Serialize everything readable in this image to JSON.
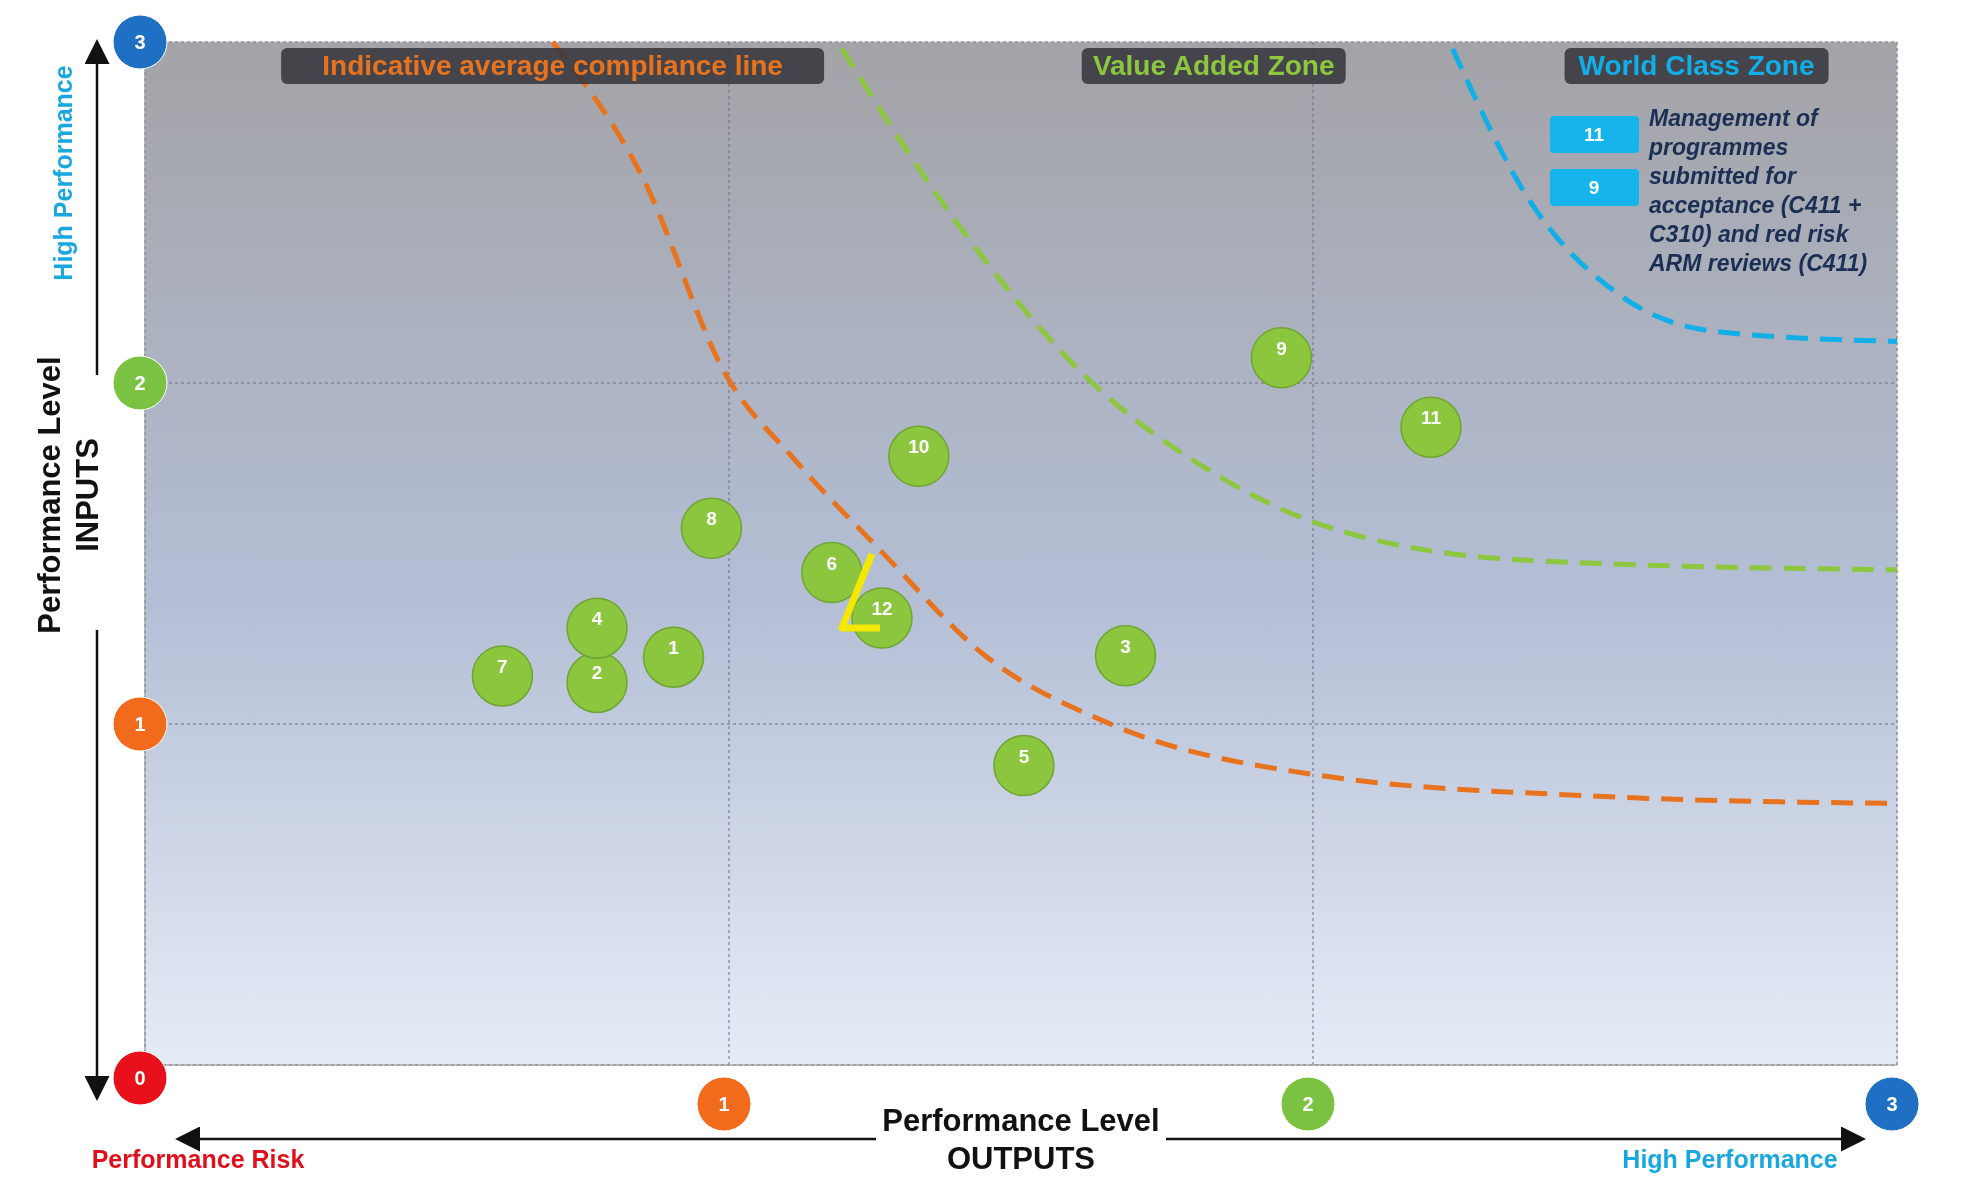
{
  "chart_data": {
    "type": "scatter",
    "xlabel": "Performance Level\nOUTPUTS",
    "ylabel": "Performance Level\nINPUTS",
    "xlim": [
      0,
      3
    ],
    "ylim": [
      0,
      3
    ],
    "xticks": [
      {
        "value": 0,
        "label": null
      },
      1,
      2,
      3
    ],
    "yticks": [
      0,
      1,
      2,
      3
    ],
    "grid": true,
    "marker": "circle",
    "line_style": "dashed",
    "series": [
      {
        "type": "scatter",
        "color": "#8cc63f",
        "x": [
          0.905,
          0.774,
          1.679,
          0.774,
          1.505,
          1.176,
          0.612,
          0.97,
          1.946,
          1.325,
          2.202,
          1.262
        ],
        "values": [
          1.196,
          1.122,
          1.2,
          1.281,
          0.878,
          1.444,
          1.141,
          1.574,
          2.074,
          1.785,
          1.87,
          1.311
        ]
      },
      {
        "type": "line",
        "marker": "none",
        "name": "Indicative average compliance line",
        "color": "#e8731e",
        "x": [
          0.698,
          0.85,
          0.996,
          1.11,
          1.262,
          1.436,
          1.653,
          2.0,
          2.477,
          3.0
        ],
        "values": [
          3.0,
          2.61,
          2.02,
          1.78,
          1.504,
          1.204,
          1.0,
          0.852,
          0.789,
          0.767
        ]
      },
      {
        "type": "line",
        "marker": "none",
        "name": "Value Added Zone",
        "color": "#8dc63f",
        "x": [
          1.193,
          1.393,
          1.61,
          1.826,
          2.0,
          2.369,
          3.0
        ],
        "values": [
          2.98,
          2.463,
          2.02,
          1.74,
          1.593,
          1.48,
          1.452
        ]
      },
      {
        "type": "line",
        "marker": "none",
        "name": "World Class Zone",
        "color": "#12aee8",
        "x": [
          2.239,
          2.369,
          2.521,
          2.694,
          3.0
        ],
        "values": [
          2.98,
          2.54,
          2.263,
          2.15,
          2.122
        ]
      }
    ],
    "annotations": [
      "High Performance",
      "Performance Risk",
      "High Performance",
      "11",
      "9",
      "Management of\nprogrammes\nsubmitted for\nacceptance (C411 +\nC310) and red risk\nARM reviews (C411)",
      {
        "text": "1",
        "x": 0.905,
        "y": 1.196
      },
      {
        "text": "2",
        "x": 0.774,
        "y": 1.122
      },
      {
        "text": "3",
        "x": 1.679,
        "y": 1.2
      },
      {
        "text": "4",
        "x": 0.774,
        "y": 1.281
      },
      {
        "text": "5",
        "x": 1.505,
        "y": 0.878
      },
      {
        "text": "6",
        "x": 1.176,
        "y": 1.444
      },
      {
        "text": "7",
        "x": 0.612,
        "y": 1.141
      },
      {
        "text": "8",
        "x": 0.97,
        "y": 1.574
      },
      {
        "text": "9",
        "x": 1.946,
        "y": 2.074
      },
      {
        "text": "10",
        "x": 1.325,
        "y": 1.785
      },
      {
        "text": "11",
        "x": 2.202,
        "y": 1.87
      },
      {
        "text": "12",
        "x": 1.262,
        "y": 1.311
      }
    ]
  }
}
